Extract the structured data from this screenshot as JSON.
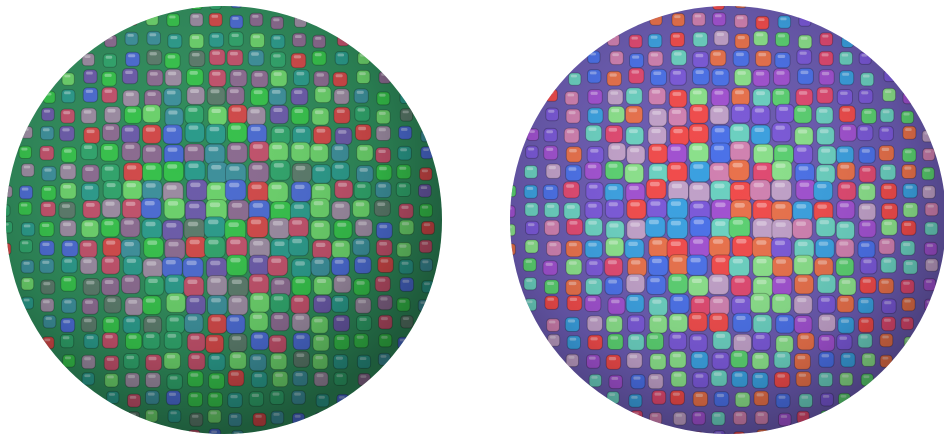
{
  "image": {
    "background": "#ffffff",
    "subjects": [
      {
        "name": "left-cluster",
        "description_shape": "sphere",
        "tile_shape": "rounded-cube",
        "palette": [
          "#35c04a",
          "#2fa36a",
          "#3c8f9a",
          "#6a5aa8",
          "#8a6a8f",
          "#c0506a",
          "#d04848",
          "#4a6ad0",
          "#6ad06a",
          "#5a7a6a",
          "#9a8aa0",
          "#2a9a8a"
        ]
      },
      {
        "name": "right-cluster",
        "description_shape": "sphere",
        "tile_shape": "rounded-cube",
        "palette": [
          "#3aa0e0",
          "#4a70e8",
          "#7a58d8",
          "#a050d0",
          "#e04870",
          "#f04a4a",
          "#e8704a",
          "#5ad070",
          "#8ae08a",
          "#c0a0c8",
          "#6ad0c0",
          "#d080b0"
        ]
      }
    ]
  }
}
